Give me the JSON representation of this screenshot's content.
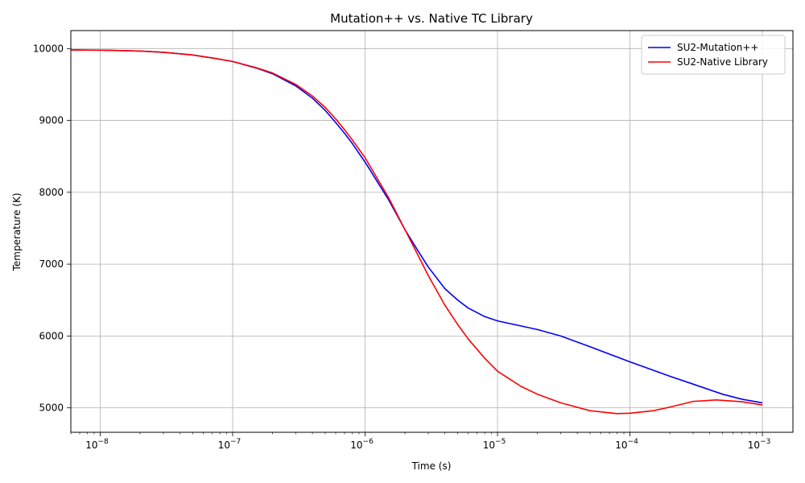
{
  "chart_data": {
    "type": "line",
    "title": "Mutation++ vs. Native TC Library",
    "xlabel": "Time (s)",
    "ylabel": "Temperature (K)",
    "xscale": "log",
    "xlim": [
      6e-09,
      0.0017
    ],
    "ylim": [
      4660,
      10250
    ],
    "grid": true,
    "legend_position": "top-right",
    "x_ticks": [
      {
        "value": 1e-08,
        "label_base": "10",
        "label_exp": "−8"
      },
      {
        "value": 1e-07,
        "label_base": "10",
        "label_exp": "−7"
      },
      {
        "value": 1e-06,
        "label_base": "10",
        "label_exp": "−6"
      },
      {
        "value": 1e-05,
        "label_base": "10",
        "label_exp": "−5"
      },
      {
        "value": 0.0001,
        "label_base": "10",
        "label_exp": "−4"
      },
      {
        "value": 0.001,
        "label_base": "10",
        "label_exp": "−3"
      }
    ],
    "y_ticks": [
      {
        "value": 5000,
        "label": "5000"
      },
      {
        "value": 6000,
        "label": "6000"
      },
      {
        "value": 7000,
        "label": "7000"
      },
      {
        "value": 8000,
        "label": "8000"
      },
      {
        "value": 9000,
        "label": "9000"
      },
      {
        "value": 10000,
        "label": "10000"
      }
    ],
    "series": [
      {
        "name": "SU2-Mutation++",
        "color": "#0000ff",
        "points": [
          [
            6e-09,
            9980
          ],
          [
            1e-08,
            9978
          ],
          [
            2e-08,
            9965
          ],
          [
            3e-08,
            9948
          ],
          [
            5e-08,
            9910
          ],
          [
            7e-08,
            9870
          ],
          [
            1e-07,
            9820
          ],
          [
            1.5e-07,
            9730
          ],
          [
            2e-07,
            9650
          ],
          [
            3e-07,
            9480
          ],
          [
            4e-07,
            9310
          ],
          [
            5e-07,
            9140
          ],
          [
            6e-07,
            8970
          ],
          [
            7e-07,
            8820
          ],
          [
            8e-07,
            8680
          ],
          [
            1e-06,
            8420
          ],
          [
            1.5e-06,
            7900
          ],
          [
            2e-06,
            7480
          ],
          [
            2.5e-06,
            7190
          ],
          [
            3e-06,
            6960
          ],
          [
            4e-06,
            6660
          ],
          [
            5e-06,
            6500
          ],
          [
            6e-06,
            6390
          ],
          [
            8e-06,
            6270
          ],
          [
            1e-05,
            6210
          ],
          [
            1.5e-05,
            6140
          ],
          [
            2e-05,
            6090
          ],
          [
            3e-05,
            6000
          ],
          [
            5e-05,
            5850
          ],
          [
            0.0001,
            5640
          ],
          [
            0.0002,
            5440
          ],
          [
            0.0003,
            5330
          ],
          [
            0.0005,
            5190
          ],
          [
            0.0007,
            5120
          ],
          [
            0.001,
            5070
          ]
        ]
      },
      {
        "name": "SU2-Native Library",
        "color": "#ff0000",
        "points": [
          [
            6e-09,
            9980
          ],
          [
            1e-08,
            9978
          ],
          [
            2e-08,
            9965
          ],
          [
            3e-08,
            9948
          ],
          [
            5e-08,
            9910
          ],
          [
            7e-08,
            9870
          ],
          [
            1e-07,
            9820
          ],
          [
            1.5e-07,
            9735
          ],
          [
            2e-07,
            9660
          ],
          [
            3e-07,
            9500
          ],
          [
            4e-07,
            9340
          ],
          [
            5e-07,
            9180
          ],
          [
            6e-07,
            9020
          ],
          [
            7e-07,
            8870
          ],
          [
            8e-07,
            8730
          ],
          [
            1e-06,
            8480
          ],
          [
            1.5e-06,
            7930
          ],
          [
            2e-06,
            7480
          ],
          [
            2.5e-06,
            7130
          ],
          [
            3e-06,
            6840
          ],
          [
            4e-06,
            6430
          ],
          [
            5e-06,
            6160
          ],
          [
            6e-06,
            5960
          ],
          [
            8e-06,
            5690
          ],
          [
            1e-05,
            5510
          ],
          [
            1.5e-05,
            5300
          ],
          [
            2e-05,
            5190
          ],
          [
            3e-05,
            5070
          ],
          [
            5e-05,
            4960
          ],
          [
            8e-05,
            4920
          ],
          [
            0.0001,
            4925
          ],
          [
            0.00015,
            4960
          ],
          [
            0.0002,
            5010
          ],
          [
            0.0003,
            5090
          ],
          [
            0.00045,
            5110
          ],
          [
            0.0007,
            5085
          ],
          [
            0.001,
            5040
          ]
        ]
      }
    ]
  }
}
